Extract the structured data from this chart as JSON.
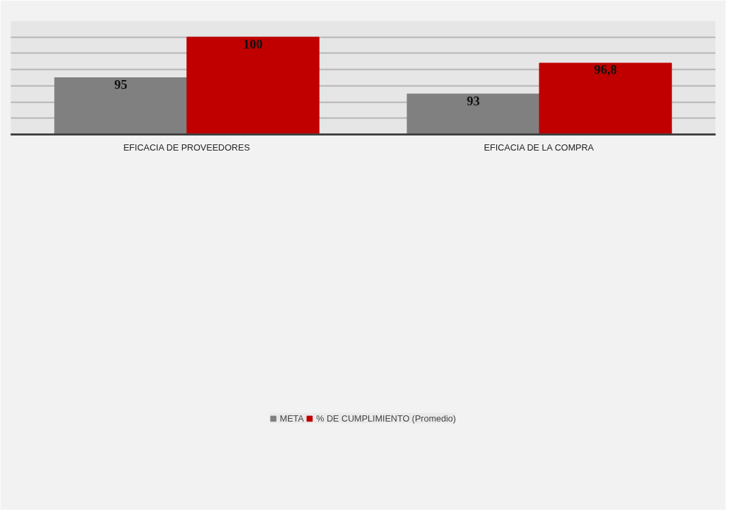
{
  "chart_data": {
    "type": "bar",
    "categories": [
      "EFICACIA DE PROVEEDORES",
      "EFICACIA DE LA COMPRA"
    ],
    "series": [
      {
        "name": "META",
        "color": "#808080",
        "values": [
          95,
          93
        ],
        "value_labels": [
          "95",
          "93"
        ]
      },
      {
        "name": "% DE CUMPLIMIENTO (Promedio)",
        "color": "#c00000",
        "values": [
          100,
          96.8
        ],
        "value_labels": [
          "100",
          "96,8"
        ]
      }
    ],
    "ylim": [
      88,
      102
    ],
    "yticks": [
      {
        "value": 88,
        "label": null
      },
      {
        "value": 90,
        "label": null
      },
      {
        "value": 92,
        "label": null
      },
      {
        "value": 94,
        "label": null
      },
      {
        "value": 96,
        "label": null
      },
      {
        "value": 98,
        "label": null
      },
      {
        "value": 100,
        "label": null
      },
      {
        "value": 102,
        "label": null
      }
    ],
    "tick_labels": "x",
    "grid": "y",
    "legend": "bottom"
  }
}
